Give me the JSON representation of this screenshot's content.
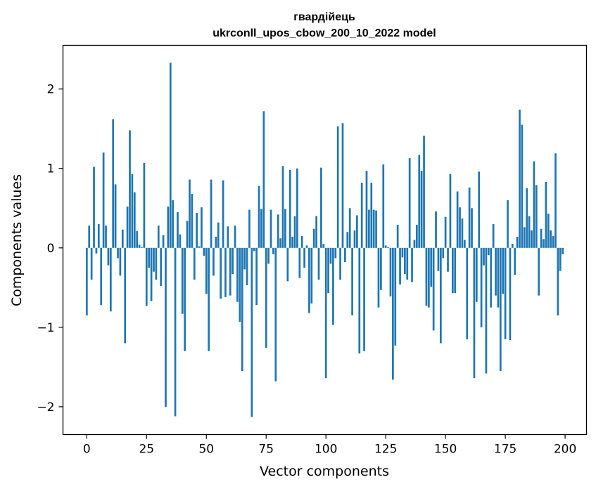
{
  "chart_data": {
    "type": "bar",
    "title_line1": "гвардійець",
    "title_line2": "ukrconll_upos_cbow_200_10_2022 model",
    "xlabel": "Vector components",
    "ylabel": "Components values",
    "xlim": [
      -9.95,
      208.95
    ],
    "ylim": [
      -2.35,
      2.55
    ],
    "xticks": [
      0,
      25,
      50,
      75,
      100,
      125,
      150,
      175,
      200
    ],
    "xtick_labels": [
      "0",
      "25",
      "50",
      "75",
      "100",
      "125",
      "150",
      "175",
      "200"
    ],
    "yticks": [
      -2,
      -1,
      0,
      1,
      2
    ],
    "ytick_labels": [
      "−2",
      "−1",
      "0",
      "1",
      "2"
    ],
    "bar_color": "#1f77b4",
    "x": [
      0,
      1,
      2,
      3,
      4,
      5,
      6,
      7,
      8,
      9,
      10,
      11,
      12,
      13,
      14,
      15,
      16,
      17,
      18,
      19,
      20,
      21,
      22,
      23,
      24,
      25,
      26,
      27,
      28,
      29,
      30,
      31,
      32,
      33,
      34,
      35,
      36,
      37,
      38,
      39,
      40,
      41,
      42,
      43,
      44,
      45,
      46,
      47,
      48,
      49,
      50,
      51,
      52,
      53,
      54,
      55,
      56,
      57,
      58,
      59,
      60,
      61,
      62,
      63,
      64,
      65,
      66,
      67,
      68,
      69,
      70,
      71,
      72,
      73,
      74,
      75,
      76,
      77,
      78,
      79,
      80,
      81,
      82,
      83,
      84,
      85,
      86,
      87,
      88,
      89,
      90,
      91,
      92,
      93,
      94,
      95,
      96,
      97,
      98,
      99,
      100,
      101,
      102,
      103,
      104,
      105,
      106,
      107,
      108,
      109,
      110,
      111,
      112,
      113,
      114,
      115,
      116,
      117,
      118,
      119,
      120,
      121,
      122,
      123,
      124,
      125,
      126,
      127,
      128,
      129,
      130,
      131,
      132,
      133,
      134,
      135,
      136,
      137,
      138,
      139,
      140,
      141,
      142,
      143,
      144,
      145,
      146,
      147,
      148,
      149,
      150,
      151,
      152,
      153,
      154,
      155,
      156,
      157,
      158,
      159,
      160,
      161,
      162,
      163,
      164,
      165,
      166,
      167,
      168,
      169,
      170,
      171,
      172,
      173,
      174,
      175,
      176,
      177,
      178,
      179,
      180,
      181,
      182,
      183,
      184,
      185,
      186,
      187,
      188,
      189,
      190,
      191,
      192,
      193,
      194,
      195,
      196,
      197,
      198,
      199
    ],
    "values": [
      -0.85,
      0.28,
      -0.4,
      1.02,
      -0.07,
      0.3,
      -0.72,
      1.2,
      0.28,
      -0.22,
      -0.8,
      1.62,
      0.8,
      -0.13,
      -0.35,
      0.23,
      -1.2,
      0.52,
      1.48,
      0.93,
      0.7,
      0.21,
      0.04,
      0.01,
      1.07,
      -0.73,
      -0.25,
      -0.67,
      -0.3,
      -0.4,
      0.28,
      -0.48,
      0.16,
      -2.0,
      0.52,
      2.33,
      0.6,
      -2.12,
      0.45,
      0.17,
      -0.83,
      -1.3,
      0.34,
      0.86,
      0.68,
      -0.4,
      0.44,
      0.02,
      0.51,
      -0.1,
      -0.58,
      -1.3,
      0.86,
      -0.35,
      0.14,
      0.32,
      -0.64,
      0.85,
      -0.62,
      0.27,
      -0.6,
      -0.33,
      0.28,
      -0.68,
      -0.93,
      -1.55,
      -0.27,
      -0.47,
      0.48,
      -2.13,
      -0.04,
      -0.72,
      0.78,
      0.49,
      1.72,
      -1.26,
      -0.2,
      0.48,
      -0.08,
      -1.68,
      0.42,
      0.12,
      1.03,
      0.49,
      -0.42,
      0.98,
      0.14,
      0.4,
      1.0,
      -0.38,
      0.15,
      -0.25,
      0.03,
      -0.82,
      -0.7,
      0.24,
      0.4,
      -0.4,
      1.01,
      0.05,
      -1.64,
      -0.57,
      -0.2,
      -0.97,
      -0.13,
      1.53,
      -0.4,
      1.57,
      -0.18,
      0.2,
      0.5,
      -0.85,
      0.22,
      0.41,
      -1.33,
      0.82,
      -1.3,
      0.97,
      0.48,
      0.82,
      0.48,
      0.47,
      -0.75,
      -0.53,
      1.05,
      0.03,
      0.01,
      -0.61,
      -1.66,
      -1.23,
      0.29,
      -0.46,
      -0.12,
      -0.33,
      -0.4,
      1.13,
      -0.43,
      0.1,
      0.29,
      1.17,
      0.97,
      1.41,
      -0.73,
      -0.75,
      -0.49,
      -1.04,
      0.46,
      -0.29,
      -1.2,
      -0.13,
      0.39,
      -0.3,
      0.93,
      -0.57,
      -0.57,
      0.71,
      0.51,
      0.37,
      0.1,
      -1.15,
      0.76,
      0.5,
      -1.64,
      -0.68,
      0.96,
      -1.0,
      -0.22,
      -1.58,
      -0.09,
      -0.75,
      0.3,
      -0.6,
      -0.75,
      -1.55,
      -0.58,
      -1.15,
      0.6,
      -1.16,
      0.05,
      -0.34,
      0.14,
      1.74,
      1.55,
      0.26,
      0.75,
      0.4,
      0.22,
      1.09,
      0.79,
      -0.6,
      0.24,
      0.11,
      0.83,
      0.43,
      0.22,
      0.15,
      1.19,
      -0.85,
      -0.29,
      -0.08
    ]
  }
}
